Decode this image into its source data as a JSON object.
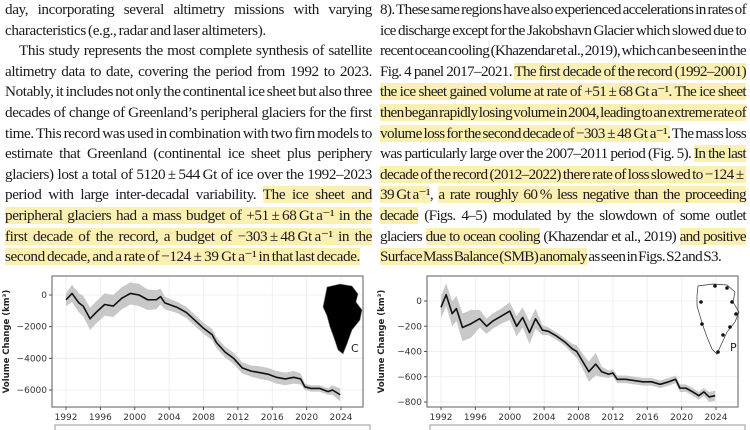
{
  "left_column": {
    "paragraphs": [
      {
        "indent": false,
        "segments": [
          {
            "text": "day, incorporating several altimetry missions with varying characteristics (e.g., radar and laser altimeters).",
            "highlight": false
          }
        ]
      },
      {
        "indent": true,
        "segments": [
          {
            "text": "This study represents the most complete synthesis of satel­lite altimetry data to date, covering the period from 1992 to 2023. Notably, it includes not only the continental ice sheet but also three decades of change of Greenland’s pe­ripheral glaciers for the first time. This record was used in combination with two firn models to estimate that Green­land (continental ice sheet plus periphery glaciers) lost a to­tal of 5120 ± 544 Gt of ice over the 1992–2023 period with large inter-decadal variability. ",
            "highlight": false
          },
          {
            "text": "The ice sheet and peripheral glaciers had a mass budget of +51 ± 68 Gt a⁻¹ in the first decade of the record, a budget of −303 ± 48 Gt a⁻¹ in the second decade, and a rate of −124 ± 39 Gt a⁻¹ in that last decade.",
            "highlight": true
          }
        ]
      }
    ]
  },
  "right_column": {
    "paragraphs": [
      {
        "indent": false,
        "segments": [
          {
            "text": "8). These same regions have also experienced accelerations in rates of ice discharge except for the Jakobshavn Glacier which slowed due to recent ocean cooling (Khazendar et al., 2019), which can be seen in the Fig. 4 panel 2017–2021. ",
            "highlight": false
          },
          {
            "text": "The first decade of the record (1992–2001) the ice sheet gained volume at rate of +51 ± 68 Gt a⁻¹. The ice sheet then began rapidly losing volume in 2004, leading to an extreme rate of volume loss for the second decade of −303 ± 48 Gt a⁻¹.",
            "highlight": true
          },
          {
            "text": " The mass loss was particularly large over the 2007–2011 period (Fig. 5). ",
            "highlight": false
          },
          {
            "text": "In the last decade of the record (2012–2022) there rate of loss slowed to −124 ± 39 Gt a⁻¹",
            "highlight": true
          },
          {
            "text": ", ",
            "highlight": false
          },
          {
            "text": "a rate roughly 60 % less negative than the proceeding decade",
            "highlight": true
          },
          {
            "text": " (Figs. 4–5) modu­lated by the slowdown of some outlet glaciers ",
            "highlight": false
          },
          {
            "text": "due to ocean cooling",
            "highlight": true
          },
          {
            "text": " (Khazendar et al., 2019) ",
            "highlight": false
          },
          {
            "text": "and positive Surface Mass Balance (SMB) anomaly",
            "highlight": true
          },
          {
            "text": " as seen in Figs. S2 and S3.",
            "highlight": false
          }
        ]
      }
    ]
  },
  "colors": {
    "highlight": "#fbf0b2",
    "line": "#111111",
    "band": "#c8c8c8",
    "grid": "#ececec"
  },
  "chart_data": [
    {
      "type": "line",
      "panel_label": "C",
      "ylabel": "Volume Change (km³)",
      "xlim": [
        1991.5,
        2025.3
      ],
      "ylim": [
        -7000,
        1000
      ],
      "xticks": [
        1992,
        1996,
        2000,
        2004,
        2008,
        2012,
        2016,
        2020,
        2024
      ],
      "yticks": [
        0,
        -2000,
        -4000,
        -6000
      ],
      "ytick_labels": [
        "0",
        "−2000",
        "−4000",
        "−6000"
      ],
      "grid": true,
      "x": [
        1992,
        1992.7,
        1993.5,
        1994,
        1994.8,
        1995.5,
        1996.5,
        1997.5,
        1998.5,
        1999.5,
        2000.5,
        2001.5,
        2002.5,
        2003,
        2003.5,
        2005,
        2006,
        2007,
        2008,
        2009,
        2009.5,
        2010.5,
        2011.5,
        2012.5,
        2013.5,
        2014.5,
        2015.5,
        2016.5,
        2017.5,
        2018.5,
        2019.3,
        2019.8,
        2020.5,
        2021.5,
        2022.5,
        2023,
        2023.9
      ],
      "y": [
        -300,
        100,
        -500,
        -700,
        -1500,
        -1100,
        -600,
        -700,
        -200,
        100,
        0,
        -300,
        -300,
        -100,
        -500,
        -800,
        -1100,
        -1600,
        -2100,
        -2500,
        -3000,
        -3600,
        -4000,
        -4600,
        -4800,
        -4900,
        -5000,
        -5200,
        -5300,
        -5200,
        -5300,
        -5800,
        -5900,
        -5900,
        -6100,
        -6000,
        -6300
      ],
      "uncertainty": [
        400,
        550,
        600,
        650,
        700,
        700,
        700,
        700,
        700,
        700,
        700,
        650,
        600,
        500,
        400,
        350,
        350,
        350,
        350,
        350,
        350,
        350,
        350,
        350,
        350,
        400,
        400,
        400,
        400,
        400,
        350,
        200,
        200,
        200,
        200,
        300,
        400
      ]
    },
    {
      "type": "line",
      "panel_label": "P",
      "ylabel": "Volume Change (km³)",
      "xlim": [
        1991.5,
        2025.3
      ],
      "ylim": [
        -840,
        170
      ],
      "xticks": [
        1992,
        1996,
        2000,
        2004,
        2008,
        2012,
        2016,
        2020,
        2024
      ],
      "yticks": [
        0,
        -200,
        -400,
        -600,
        -800
      ],
      "ytick_labels": [
        "0",
        "−200",
        "−400",
        "−600",
        "−800"
      ],
      "grid": true,
      "x": [
        1992,
        1992.6,
        1993.3,
        1993.8,
        1994.5,
        1995.5,
        1996.5,
        1997.3,
        1998,
        1999,
        2000,
        2000.8,
        2001.5,
        2002.3,
        2003,
        2003.8,
        2004.5,
        2005.5,
        2006.5,
        2007.3,
        2007.8,
        2008.5,
        2009.2,
        2010,
        2010.7,
        2011.5,
        2012,
        2012.5,
        2013.5,
        2014.5,
        2015.5,
        2016.5,
        2017.5,
        2018.5,
        2019.3,
        2019.8,
        2020.5,
        2021.3,
        2022,
        2022.6,
        2023.2,
        2023.9
      ],
      "y": [
        -50,
        50,
        -100,
        -60,
        -210,
        -180,
        -140,
        -200,
        -160,
        -120,
        -80,
        -200,
        -130,
        -250,
        -140,
        -230,
        -240,
        -280,
        -330,
        -380,
        -400,
        -480,
        -560,
        -500,
        -560,
        -580,
        -570,
        -620,
        -620,
        -630,
        -640,
        -640,
        -660,
        -640,
        -620,
        -690,
        -690,
        -720,
        -750,
        -720,
        -760,
        -750
      ],
      "uncertainty": [
        90,
        90,
        100,
        100,
        110,
        110,
        70,
        60,
        60,
        60,
        70,
        80,
        80,
        90,
        80,
        40,
        30,
        30,
        30,
        40,
        50,
        60,
        80,
        90,
        40,
        30,
        30,
        30,
        30,
        30,
        30,
        30,
        30,
        30,
        30,
        30,
        30,
        30,
        30,
        30,
        40,
        40
      ]
    }
  ]
}
